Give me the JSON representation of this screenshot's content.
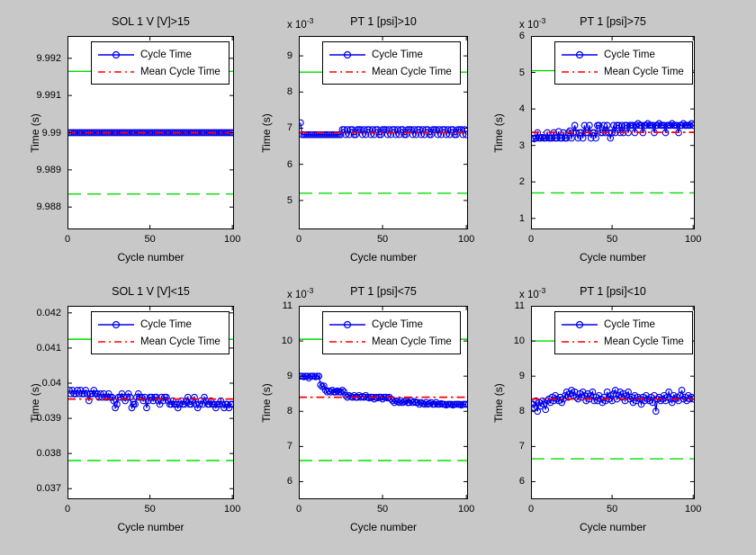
{
  "figure": {
    "background_color": "#c8c8c8",
    "axes_background": "#ffffff",
    "frame_color": "#000000",
    "data_color": "#0000ee",
    "mean_color": "#ff0000",
    "limit_color": "#00dd00"
  },
  "chart_data": [
    {
      "type": "line",
      "title": "SOL 1 V [V]>15",
      "xlabel": "Cycle number",
      "ylabel": "Time (s)",
      "exponent": {
        "base": "",
        "exp": ""
      },
      "xlim": [
        0,
        101
      ],
      "xticks": [
        0,
        50,
        100
      ],
      "ylim": [
        9.9874,
        9.9926
      ],
      "ytick_values": [
        9.988,
        9.989,
        9.99,
        9.991,
        9.992
      ],
      "ytick_labels": [
        "9.988",
        "9.989",
        "9.99",
        "9.991",
        "9.992"
      ],
      "grid": false,
      "legend_position": "north-inside",
      "series": [
        {
          "name": "Cycle Time",
          "style": "solid-circle-markers",
          "color": "#0000ee",
          "x_start": 1,
          "y": [
            9.99,
            9.99,
            9.99,
            9.99,
            9.99,
            9.99,
            9.99,
            9.99,
            9.99,
            9.99,
            9.99,
            9.99,
            9.99,
            9.99,
            9.99,
            9.99,
            9.99,
            9.99,
            9.99,
            9.99,
            9.99,
            9.99,
            9.99,
            9.99,
            9.99,
            9.99,
            9.99,
            9.99,
            9.99,
            9.99,
            9.99,
            9.99,
            9.99,
            9.99,
            9.99,
            9.99,
            9.99,
            9.99,
            9.99,
            9.99,
            9.99,
            9.99,
            9.99,
            9.99,
            9.99,
            9.99,
            9.99,
            9.99,
            9.99,
            9.99,
            9.99,
            9.99,
            9.99,
            9.99,
            9.99,
            9.99,
            9.99,
            9.99,
            9.99,
            9.99,
            9.99,
            9.99,
            9.99,
            9.99,
            9.99,
            9.99,
            9.99,
            9.99,
            9.99,
            9.99,
            9.99,
            9.99,
            9.99,
            9.99,
            9.99,
            9.99,
            9.99,
            9.99,
            9.99,
            9.99,
            9.99,
            9.99,
            9.99,
            9.99,
            9.99,
            9.99,
            9.99,
            9.99,
            9.99,
            9.99,
            9.99,
            9.99,
            9.99,
            9.99,
            9.99,
            9.99,
            9.99,
            9.99,
            9.99,
            9.99
          ]
        },
        {
          "name": "Mean Cycle Time",
          "style": "dash-dot",
          "color": "#ff0000",
          "value": 9.99
        }
      ],
      "limit_lines": [
        {
          "style": "solid",
          "color": "#00dd00",
          "value": 9.99165
        },
        {
          "style": "dashed",
          "color": "#00dd00",
          "value": 9.98835
        }
      ]
    },
    {
      "type": "line",
      "title": "PT 1 [psi]>10",
      "xlabel": "Cycle number",
      "ylabel": "Time (s)",
      "exponent": {
        "base": "x 10",
        "exp": "-3"
      },
      "xlim": [
        0,
        101
      ],
      "xticks": [
        0,
        50,
        100
      ],
      "ylim": [
        4.2,
        9.55
      ],
      "ytick_values": [
        5,
        6,
        7,
        8,
        9
      ],
      "ytick_labels": [
        "5",
        "6",
        "7",
        "8",
        "9"
      ],
      "grid": false,
      "legend_position": "north-inside",
      "series": [
        {
          "name": "Cycle Time",
          "style": "solid-circle-markers",
          "color": "#0000ee",
          "x_start": 1,
          "y": [
            7.15,
            6.82,
            6.82,
            6.82,
            6.82,
            6.82,
            6.82,
            6.82,
            6.82,
            6.82,
            6.82,
            6.82,
            6.82,
            6.82,
            6.82,
            6.82,
            6.82,
            6.82,
            6.82,
            6.82,
            6.82,
            6.82,
            6.82,
            6.82,
            6.82,
            6.96,
            6.96,
            6.82,
            6.96,
            6.82,
            6.96,
            6.96,
            6.82,
            6.82,
            6.96,
            6.96,
            6.96,
            6.82,
            6.96,
            6.82,
            6.96,
            6.96,
            6.82,
            6.96,
            6.82,
            6.96,
            6.96,
            6.82,
            6.82,
            6.96,
            6.96,
            6.96,
            6.82,
            6.96,
            6.82,
            6.96,
            6.96,
            6.82,
            6.96,
            6.82,
            6.96,
            6.96,
            6.82,
            6.82,
            6.96,
            6.96,
            6.96,
            6.82,
            6.96,
            6.82,
            6.96,
            6.96,
            6.82,
            6.96,
            6.82,
            6.96,
            6.96,
            6.82,
            6.82,
            6.96,
            6.96,
            6.96,
            6.82,
            6.96,
            6.82,
            6.96,
            6.96,
            6.82,
            6.96,
            6.82,
            6.96,
            6.96,
            6.82,
            6.82,
            6.96,
            6.96,
            6.96,
            6.82,
            6.96,
            6.82
          ]
        },
        {
          "name": "Mean Cycle Time",
          "style": "dash-dot",
          "color": "#ff0000",
          "value": 6.88
        }
      ],
      "limit_lines": [
        {
          "style": "solid",
          "color": "#00dd00",
          "value": 8.55
        },
        {
          "style": "dashed",
          "color": "#00dd00",
          "value": 5.2
        }
      ]
    },
    {
      "type": "line",
      "title": "PT 1 [psi]>75",
      "xlabel": "Cycle number",
      "ylabel": "Time (s)",
      "exponent": {
        "base": "x 10",
        "exp": "-3"
      },
      "xlim": [
        0,
        101
      ],
      "xticks": [
        0,
        50,
        100
      ],
      "ylim": [
        0.7,
        6.0
      ],
      "ytick_values": [
        1,
        2,
        3,
        4,
        5,
        6
      ],
      "ytick_labels": [
        "1",
        "2",
        "3",
        "4",
        "5",
        "6"
      ],
      "grid": false,
      "legend_position": "north-inside",
      "series": [
        {
          "name": "Cycle Time",
          "style": "solid-circle-markers",
          "color": "#0000ee",
          "x_start": 1,
          "y": [
            3.2,
            3.18,
            3.2,
            3.35,
            3.2,
            3.2,
            3.22,
            3.2,
            3.2,
            3.35,
            3.2,
            3.2,
            3.2,
            3.35,
            3.2,
            3.2,
            3.38,
            3.2,
            3.2,
            3.35,
            3.2,
            3.2,
            3.35,
            3.4,
            3.2,
            3.35,
            3.55,
            3.35,
            3.2,
            3.35,
            3.35,
            3.2,
            3.55,
            3.35,
            3.35,
            3.55,
            3.2,
            3.35,
            3.35,
            3.2,
            3.55,
            3.55,
            3.35,
            3.35,
            3.55,
            3.35,
            3.55,
            3.35,
            3.2,
            3.35,
            3.55,
            3.35,
            3.55,
            3.55,
            3.35,
            3.55,
            3.35,
            3.55,
            3.55,
            3.35,
            3.55,
            3.55,
            3.55,
            3.35,
            3.55,
            3.6,
            3.55,
            3.55,
            3.35,
            3.55,
            3.55,
            3.6,
            3.55,
            3.55,
            3.55,
            3.35,
            3.55,
            3.55,
            3.6,
            3.55,
            3.55,
            3.55,
            3.35,
            3.55,
            3.55,
            3.55,
            3.6,
            3.55,
            3.55,
            3.55,
            3.35,
            3.55,
            3.55,
            3.6,
            3.55,
            3.55,
            3.55,
            3.55,
            3.6,
            3.55
          ]
        },
        {
          "name": "Mean Cycle Time",
          "style": "dash-dot",
          "color": "#ff0000",
          "value": 3.36
        }
      ],
      "limit_lines": [
        {
          "style": "solid",
          "color": "#00dd00",
          "value": 5.05
        },
        {
          "style": "dashed",
          "color": "#00dd00",
          "value": 1.7
        }
      ]
    },
    {
      "type": "line",
      "title": "SOL 1 V [V]<15",
      "xlabel": "Cycle number",
      "ylabel": "Time (s)",
      "exponent": {
        "base": "",
        "exp": ""
      },
      "xlim": [
        0,
        101
      ],
      "xticks": [
        0,
        50,
        100
      ],
      "ylim": [
        0.0367,
        0.0422
      ],
      "ytick_values": [
        0.037,
        0.038,
        0.039,
        0.04,
        0.041,
        0.042
      ],
      "ytick_labels": [
        "0.037",
        "0.038",
        "0.039",
        "0.04",
        "0.041",
        "0.042"
      ],
      "grid": false,
      "legend_position": "north-inside",
      "series": [
        {
          "name": "Cycle Time",
          "style": "solid-circle-markers",
          "color": "#0000ee",
          "x_start": 1,
          "y": [
            0.0398,
            0.0397,
            0.0398,
            0.0397,
            0.0397,
            0.0398,
            0.0397,
            0.0398,
            0.0397,
            0.0397,
            0.0398,
            0.0397,
            0.0395,
            0.0397,
            0.0397,
            0.0398,
            0.0397,
            0.0397,
            0.0396,
            0.0397,
            0.0396,
            0.0397,
            0.0396,
            0.0396,
            0.0397,
            0.0396,
            0.0396,
            0.0395,
            0.0393,
            0.0394,
            0.0396,
            0.0396,
            0.0397,
            0.0396,
            0.0395,
            0.0396,
            0.0397,
            0.0396,
            0.0393,
            0.0394,
            0.0394,
            0.0396,
            0.0397,
            0.0396,
            0.0396,
            0.0395,
            0.0396,
            0.0393,
            0.0395,
            0.0396,
            0.0396,
            0.0395,
            0.0396,
            0.0396,
            0.0395,
            0.0394,
            0.0396,
            0.0395,
            0.0396,
            0.0396,
            0.0395,
            0.0394,
            0.0394,
            0.0395,
            0.0394,
            0.0394,
            0.0393,
            0.0394,
            0.0395,
            0.0394,
            0.0394,
            0.0395,
            0.0396,
            0.0394,
            0.0394,
            0.0395,
            0.0396,
            0.0394,
            0.0393,
            0.0394,
            0.0395,
            0.0394,
            0.0396,
            0.0395,
            0.0394,
            0.0394,
            0.0395,
            0.0394,
            0.0394,
            0.0393,
            0.0394,
            0.0394,
            0.0395,
            0.0394,
            0.0393,
            0.0394,
            0.0394,
            0.0393,
            0.0394,
            0.0394
          ]
        },
        {
          "name": "Mean Cycle Time",
          "style": "dash-dot",
          "color": "#ff0000",
          "value": 0.03955
        }
      ],
      "limit_lines": [
        {
          "style": "solid",
          "color": "#00dd00",
          "value": 0.04125
        },
        {
          "style": "dashed",
          "color": "#00dd00",
          "value": 0.0378
        }
      ]
    },
    {
      "type": "line",
      "title": "PT 1 [psi]<75",
      "xlabel": "Cycle number",
      "ylabel": "Time (s)",
      "exponent": {
        "base": "x 10",
        "exp": "-3"
      },
      "xlim": [
        0,
        101
      ],
      "xticks": [
        0,
        50,
        100
      ],
      "ylim": [
        5.5,
        11
      ],
      "ytick_values": [
        6,
        7,
        8,
        9,
        10,
        11
      ],
      "ytick_labels": [
        "6",
        "7",
        "8",
        "9",
        "10",
        "11"
      ],
      "grid": false,
      "legend_position": "north-inside",
      "series": [
        {
          "name": "Cycle Time",
          "style": "solid-circle-markers",
          "color": "#0000ee",
          "x_start": 1,
          "y": [
            9.0,
            9.0,
            8.98,
            9.0,
            9.0,
            8.95,
            9.0,
            9.0,
            9.0,
            8.98,
            9.0,
            9.0,
            8.75,
            8.7,
            8.72,
            8.6,
            8.55,
            8.58,
            8.55,
            8.6,
            8.55,
            8.55,
            8.58,
            8.55,
            8.55,
            8.6,
            8.55,
            8.45,
            8.4,
            8.45,
            8.42,
            8.4,
            8.45,
            8.4,
            8.4,
            8.45,
            8.4,
            8.42,
            8.4,
            8.45,
            8.4,
            8.38,
            8.4,
            8.4,
            8.35,
            8.4,
            8.38,
            8.4,
            8.4,
            8.35,
            8.4,
            8.4,
            8.38,
            8.4,
            8.35,
            8.3,
            8.25,
            8.3,
            8.28,
            8.25,
            8.3,
            8.25,
            8.28,
            8.3,
            8.25,
            8.25,
            8.3,
            8.25,
            8.28,
            8.25,
            8.25,
            8.2,
            8.25,
            8.22,
            8.2,
            8.25,
            8.2,
            8.22,
            8.25,
            8.2,
            8.2,
            8.25,
            8.2,
            8.2,
            8.22,
            8.2,
            8.2,
            8.18,
            8.2,
            8.2,
            8.2,
            8.18,
            8.2,
            8.2,
            8.2,
            8.2,
            8.18,
            8.2,
            8.2,
            8.2
          ]
        },
        {
          "name": "Mean Cycle Time",
          "style": "dash-dot",
          "color": "#ff0000",
          "value": 8.4
        }
      ],
      "limit_lines": [
        {
          "style": "solid",
          "color": "#00dd00",
          "value": 10.05
        },
        {
          "style": "dashed",
          "color": "#00dd00",
          "value": 6.6
        }
      ]
    },
    {
      "type": "line",
      "title": "PT 1 [psi]<10",
      "xlabel": "Cycle number",
      "ylabel": "Time (s)",
      "exponent": {
        "base": "x 10",
        "exp": "-3"
      },
      "xlim": [
        0,
        101
      ],
      "xticks": [
        0,
        50,
        100
      ],
      "ylim": [
        5.5,
        11
      ],
      "ytick_values": [
        6,
        7,
        8,
        9,
        10,
        11
      ],
      "ytick_labels": [
        "6",
        "7",
        "8",
        "9",
        "10",
        "11"
      ],
      "grid": false,
      "legend_position": "north-inside",
      "series": [
        {
          "name": "Cycle Time",
          "style": "solid-circle-markers",
          "color": "#0000ee",
          "x_start": 1,
          "y": [
            8.2,
            8.1,
            8.3,
            8.0,
            8.25,
            8.15,
            8.3,
            8.2,
            8.05,
            8.3,
            8.35,
            8.25,
            8.4,
            8.3,
            8.45,
            8.35,
            8.3,
            8.4,
            8.25,
            8.35,
            8.45,
            8.55,
            8.4,
            8.5,
            8.6,
            8.45,
            8.55,
            8.4,
            8.35,
            8.5,
            8.4,
            8.55,
            8.45,
            8.3,
            8.5,
            8.35,
            8.45,
            8.55,
            8.3,
            8.4,
            8.3,
            8.45,
            8.35,
            8.25,
            8.4,
            8.3,
            8.55,
            8.35,
            8.45,
            8.3,
            8.5,
            8.6,
            8.35,
            8.45,
            8.55,
            8.4,
            8.5,
            8.3,
            8.45,
            8.55,
            8.35,
            8.4,
            8.25,
            8.45,
            8.3,
            8.4,
            8.35,
            8.2,
            8.4,
            8.3,
            8.45,
            8.35,
            8.3,
            8.4,
            8.25,
            8.45,
            8.0,
            8.35,
            8.4,
            8.3,
            8.35,
            8.45,
            8.3,
            8.4,
            8.55,
            8.35,
            8.25,
            8.45,
            8.35,
            8.4,
            8.3,
            8.45,
            8.6,
            8.35,
            8.4,
            8.3,
            8.45,
            8.35,
            8.4,
            8.35
          ]
        },
        {
          "name": "Mean Cycle Time",
          "style": "dash-dot",
          "color": "#ff0000",
          "value": 8.35
        }
      ],
      "limit_lines": [
        {
          "style": "solid",
          "color": "#00dd00",
          "value": 10.0
        },
        {
          "style": "dashed",
          "color": "#00dd00",
          "value": 6.65
        }
      ]
    }
  ]
}
